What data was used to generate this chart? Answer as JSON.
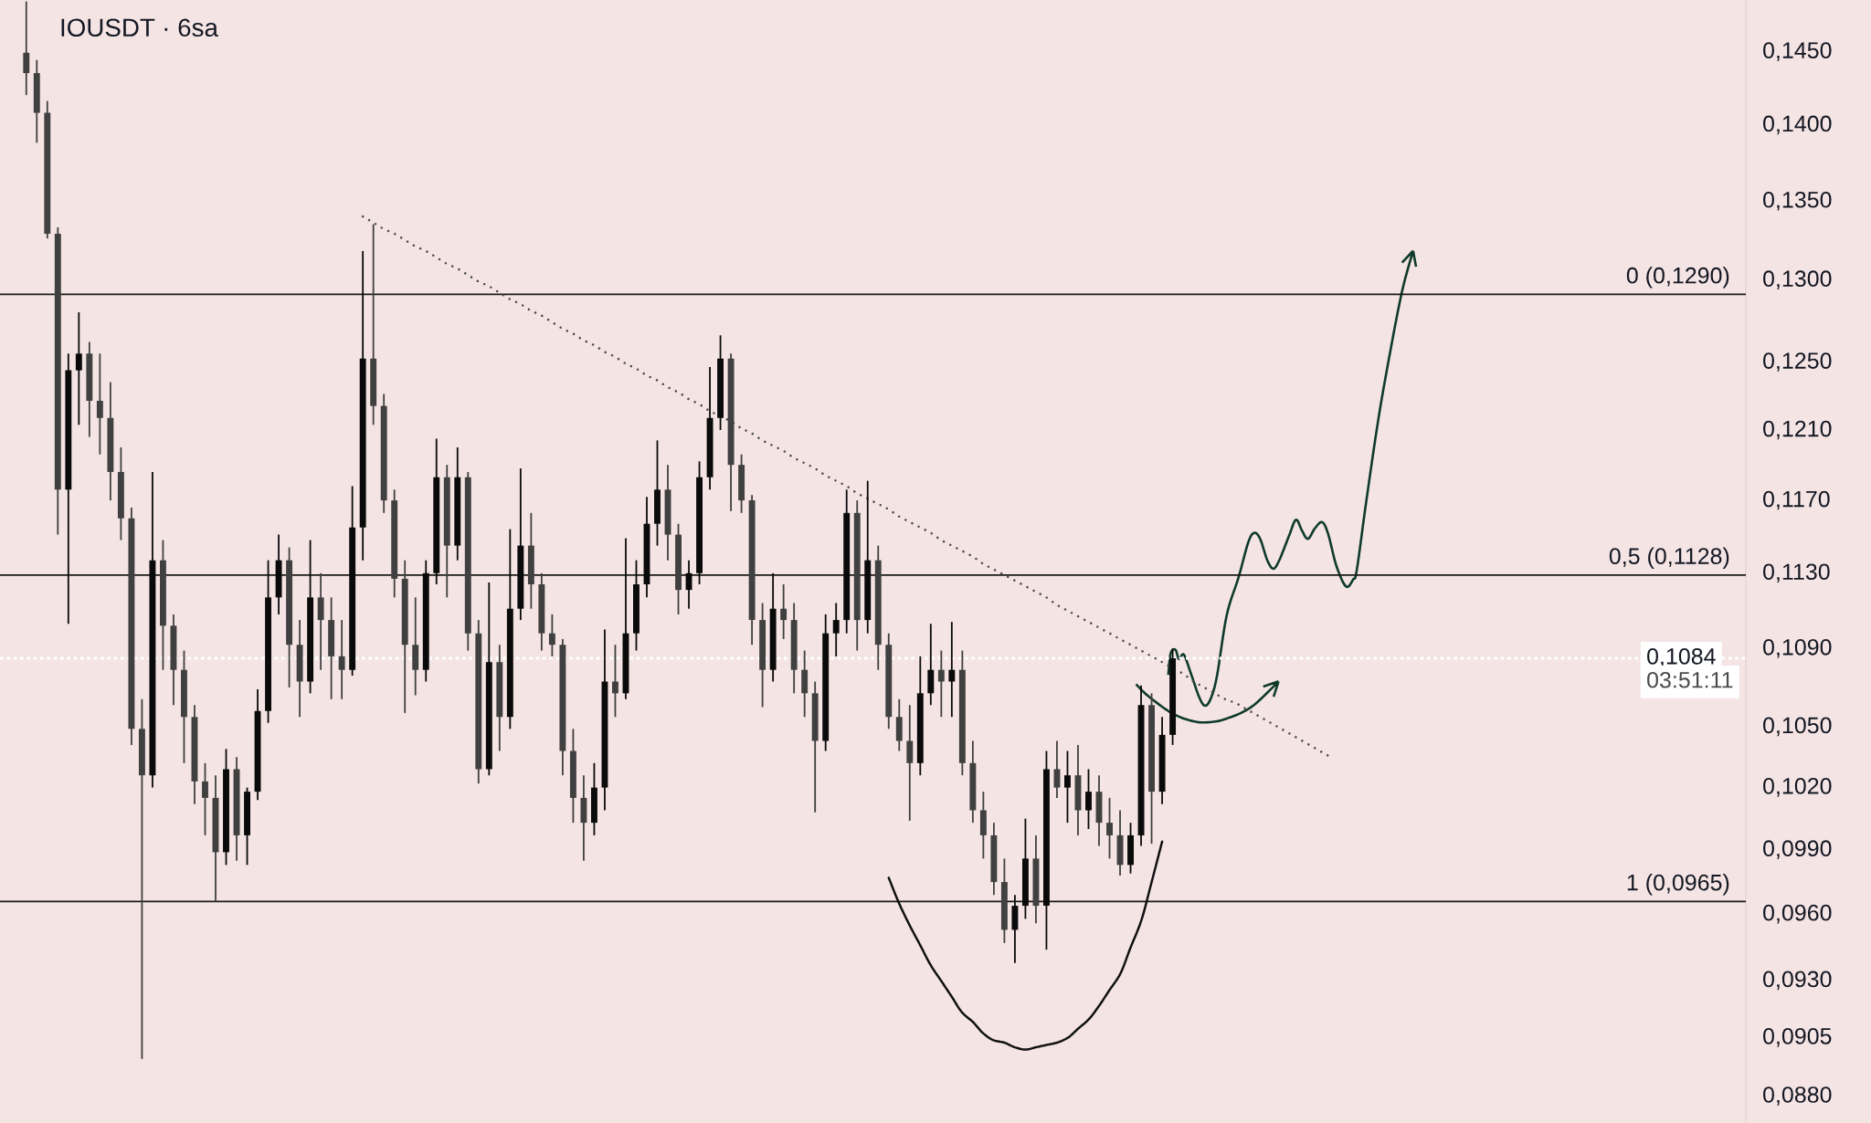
{
  "chart_data": {
    "type": "candlestick",
    "title": "IOUSDT · 6sa",
    "categories": [
      null,
      null,
      null,
      null,
      null,
      null,
      null,
      null,
      null,
      null,
      null,
      null,
      null,
      null,
      null,
      null,
      null,
      null,
      null,
      null,
      null,
      null,
      null,
      null,
      null,
      null,
      null,
      null,
      null,
      null,
      null,
      null,
      null,
      null,
      null,
      null,
      null,
      null,
      null,
      null,
      null,
      null,
      null,
      null,
      null,
      null,
      null,
      null,
      null,
      null,
      null,
      null,
      null,
      null,
      null,
      null,
      null,
      null,
      null,
      null,
      null,
      null,
      null,
      null,
      null,
      null,
      null,
      null,
      null,
      null,
      null,
      null,
      null,
      null,
      null,
      null,
      null,
      null,
      null,
      null,
      null,
      null,
      null,
      null,
      null,
      null,
      null,
      null,
      null,
      null,
      null,
      null,
      null,
      null,
      null,
      null,
      null,
      null,
      null,
      null,
      null,
      null,
      null,
      null,
      null,
      null,
      null,
      null,
      null,
      null,
      null,
      null,
      null,
      null,
      null,
      null,
      null,
      null,
      null,
      null,
      null,
      null,
      null,
      null,
      null,
      null,
      null,
      null,
      null,
      null,
      null,
      null,
      null,
      null,
      null,
      null,
      null,
      null,
      null,
      null,
      null,
      null,
      null,
      null,
      null,
      null,
      null,
      null,
      null,
      null,
      null,
      null,
      null,
      null,
      null,
      null,
      null,
      null,
      null,
      null,
      null,
      null,
      null,
      null,
      null,
      null
    ],
    "series": [
      {
        "colors": [
          null,
          null,
          "#404040",
          "#404040",
          "#404040",
          "#404040",
          "#0a0a0a",
          "#0a0a0a",
          "#404040",
          "#404040",
          "#404040",
          "#404040",
          "#404040",
          "#404040",
          "#0a0a0a",
          "#404040",
          "#404040",
          "#404040",
          "#404040",
          "#404040",
          "#404040",
          "#0a0a0a",
          "#404040",
          "#0a0a0a",
          "#0a0a0a",
          "#0a0a0a",
          "#0a0a0a",
          "#404040",
          "#404040",
          "#0a0a0a",
          "#404040",
          "#404040",
          "#404040",
          "#0a0a0a",
          "#0a0a0a",
          "#404040",
          "#404040",
          "#404040",
          "#404040",
          "#404040",
          "#0a0a0a",
          "#0a0a0a",
          "#404040",
          "#0a0a0a",
          "#404040",
          "#404040",
          "#0a0a0a",
          "#404040",
          "#0a0a0a",
          "#0a0a0a",
          "#404040",
          "#404040",
          "#404040",
          "#404040",
          "#404040",
          "#404040",
          "#0a0a0a",
          "#0a0a0a",
          "#404040",
          "#0a0a0a",
          "#0a0a0a",
          "#0a0a0a",
          "#0a0a0a",
          "#404040",
          "#404040",
          "#0a0a0a",
          "#0a0a0a",
          "#0a0a0a",
          "#0a0a0a",
          "#404040",
          "#404040",
          "#404040",
          "#404040",
          "#0a0a0a",
          "#404040",
          "#404040",
          "#404040",
          "#404040",
          "#0a0a0a",
          "#0a0a0a",
          "#0a0a0a",
          "#404040",
          "#0a0a0a",
          "#404040",
          "#404040",
          "#404040",
          "#404040",
          "#0a0a0a",
          "#0a0a0a",
          "#404040",
          "#0a0a0a",
          "#404040",
          "#404040",
          "#404040",
          "#404040",
          "#404040",
          "#0a0a0a",
          "#0a0a0a",
          "#404040",
          "#0a0a0a",
          "#404040",
          "#0a0a0a",
          "#404040",
          "#0a0a0a",
          "#404040",
          "#404040",
          "#404040",
          "#0a0a0a",
          "#0a0a0a",
          "#404040",
          "#0a0a0a",
          "#0a0a0a",
          null,
          null,
          null,
          null,
          null,
          null,
          null,
          null,
          null,
          null,
          null,
          null,
          null,
          null,
          null,
          null,
          null,
          null,
          null,
          null,
          null,
          null,
          null,
          null,
          null,
          null,
          null,
          null,
          null,
          null,
          null,
          null,
          null,
          null,
          null,
          null,
          null,
          null,
          null,
          null,
          null,
          null,
          null,
          null,
          null,
          null,
          null,
          null,
          null,
          null,
          null,
          null,
          null,
          null
        ],
        "ohlc": [
          null,
          null,
          [
            0.1448,
            0.1484,
            0.1419,
            0.1434
          ],
          [
            0.1434,
            0.1443,
            0.1387,
            0.1407
          ],
          [
            0.1407,
            0.1415,
            0.1325,
            0.1328
          ],
          [
            0.1328,
            0.1332,
            0.115,
            0.1175
          ],
          [
            0.1175,
            0.1254,
            0.1102,
            0.1244
          ],
          [
            0.1244,
            0.1279,
            0.1212,
            0.1254
          ],
          [
            0.1254,
            0.1261,
            0.1205,
            0.1226
          ],
          [
            0.1226,
            0.1254,
            0.1195,
            0.1216
          ],
          [
            0.1216,
            0.1237,
            0.1169,
            0.1185
          ],
          [
            0.1185,
            0.1199,
            0.1147,
            0.1159
          ],
          [
            0.1159,
            0.1165,
            0.104,
            0.1048
          ],
          [
            0.1048,
            0.1063,
            0.0895,
            0.1025
          ],
          [
            0.1025,
            0.1185,
            0.1019,
            0.1136
          ],
          [
            0.1136,
            0.1147,
            0.1078,
            0.1101
          ],
          [
            0.1101,
            0.1107,
            0.106,
            0.1078
          ],
          [
            0.1078,
            0.1088,
            0.1031,
            0.1054
          ],
          [
            0.1054,
            0.106,
            0.1011,
            0.1022
          ],
          [
            0.1022,
            0.1031,
            0.0996,
            0.1014
          ],
          [
            0.1014,
            0.1025,
            0.0965,
            0.0988
          ],
          [
            0.0988,
            0.1038,
            0.0982,
            0.1028
          ],
          [
            0.1028,
            0.1034,
            0.0984,
            0.0996
          ],
          [
            0.0996,
            0.1019,
            0.0982,
            0.1017
          ],
          [
            0.1017,
            0.1068,
            0.1013,
            0.1057
          ],
          [
            0.1057,
            0.1136,
            0.1051,
            0.1116
          ],
          [
            0.1116,
            0.115,
            0.1107,
            0.1136
          ],
          [
            0.1136,
            0.1143,
            0.1069,
            0.1091
          ],
          [
            0.1091,
            0.1104,
            0.1054,
            0.1072
          ],
          [
            0.1072,
            0.1147,
            0.1066,
            0.1116
          ],
          [
            0.1116,
            0.1129,
            0.1078,
            0.1104
          ],
          [
            0.1104,
            0.1116,
            0.1063,
            0.1085
          ],
          [
            0.1085,
            0.1104,
            0.1063,
            0.1078
          ],
          [
            0.1078,
            0.1177,
            0.1075,
            0.1154
          ],
          [
            0.1154,
            0.1317,
            0.1136,
            0.1251
          ],
          [
            0.1251,
            0.1334,
            0.1212,
            0.1223
          ],
          [
            0.1223,
            0.123,
            0.1162,
            0.1169
          ],
          [
            0.1169,
            0.1175,
            0.1116,
            0.1126
          ],
          [
            0.1126,
            0.1136,
            0.1056,
            0.1091
          ],
          [
            0.1091,
            0.1116,
            0.1065,
            0.1078
          ],
          [
            0.1078,
            0.1136,
            0.1072,
            0.1129
          ],
          [
            0.1129,
            0.1204,
            0.1123,
            0.1182
          ],
          [
            0.1182,
            0.1189,
            0.1116,
            0.1144
          ],
          [
            0.1144,
            0.1199,
            0.1136,
            0.1182
          ],
          [
            0.1182,
            0.1185,
            0.1088,
            0.1097
          ],
          [
            0.1097,
            0.1104,
            0.1021,
            0.1028
          ],
          [
            0.1028,
            0.1124,
            0.1025,
            0.1082
          ],
          [
            0.1082,
            0.1091,
            0.1037,
            0.1054
          ],
          [
            0.1054,
            0.1153,
            0.1048,
            0.111
          ],
          [
            0.111,
            0.1187,
            0.1104,
            0.1144
          ],
          [
            0.1144,
            0.1162,
            0.111,
            0.1123
          ],
          [
            0.1123,
            0.1129,
            0.1088,
            0.1097
          ],
          [
            0.1097,
            0.1107,
            0.1085,
            0.1091
          ],
          [
            0.1091,
            0.1094,
            0.1025,
            0.1037
          ],
          [
            0.1037,
            0.1048,
            0.1002,
            0.1014
          ],
          [
            0.1014,
            0.1025,
            0.0984,
            0.1002
          ],
          [
            0.1002,
            0.1031,
            0.0996,
            0.1019
          ],
          [
            0.1019,
            0.1099,
            0.1008,
            0.1072
          ],
          [
            0.1072,
            0.1091,
            0.1054,
            0.1066
          ],
          [
            0.1066,
            0.1148,
            0.1063,
            0.1097
          ],
          [
            0.1097,
            0.1136,
            0.1088,
            0.1123
          ],
          [
            0.1123,
            0.1171,
            0.1116,
            0.1156
          ],
          [
            0.1156,
            0.1203,
            0.1144,
            0.1175
          ],
          [
            0.1175,
            0.1189,
            0.1136,
            0.115
          ],
          [
            0.115,
            0.1156,
            0.1107,
            0.112
          ],
          [
            0.112,
            0.1136,
            0.111,
            0.1129
          ],
          [
            0.1129,
            0.1191,
            0.1123,
            0.1182
          ],
          [
            0.1182,
            0.1246,
            0.1175,
            0.1216
          ],
          [
            0.1216,
            0.1265,
            0.1209,
            0.1251
          ],
          [
            0.1251,
            0.1254,
            0.1163,
            0.1189
          ],
          [
            0.1189,
            0.1195,
            0.1162,
            0.1169
          ],
          [
            0.1169,
            0.1172,
            0.1091,
            0.1104
          ],
          [
            0.1104,
            0.1113,
            0.1059,
            0.1078
          ],
          [
            0.1078,
            0.1129,
            0.1072,
            0.111
          ],
          [
            0.111,
            0.1123,
            0.1094,
            0.1104
          ],
          [
            0.1104,
            0.1113,
            0.1066,
            0.1078
          ],
          [
            0.1078,
            0.1088,
            0.1054,
            0.1066
          ],
          [
            0.1066,
            0.1072,
            0.1007,
            0.1042
          ],
          [
            0.1042,
            0.1107,
            0.1037,
            0.1097
          ],
          [
            0.1097,
            0.1113,
            0.1085,
            0.1104
          ],
          [
            0.1104,
            0.1175,
            0.1097,
            0.1162
          ],
          [
            0.1162,
            0.1169,
            0.1088,
            0.1104
          ],
          [
            0.1104,
            0.118,
            0.1097,
            0.1136
          ],
          [
            0.1136,
            0.1144,
            0.1078,
            0.1091
          ],
          [
            0.1091,
            0.1097,
            0.1048,
            0.1054
          ],
          [
            0.1054,
            0.1063,
            0.1037,
            0.1042
          ],
          [
            0.1042,
            0.106,
            0.1003,
            0.1031
          ],
          [
            0.1031,
            0.1085,
            0.1025,
            0.1066
          ],
          [
            0.1066,
            0.1102,
            0.106,
            0.1078
          ],
          [
            0.1078,
            0.1088,
            0.1054,
            0.1072
          ],
          [
            0.1072,
            0.1103,
            0.1054,
            0.1078
          ],
          [
            0.1078,
            0.1088,
            0.1025,
            0.1031
          ],
          [
            0.1031,
            0.1042,
            0.1002,
            0.1008
          ],
          [
            0.1008,
            0.1017,
            0.0985,
            0.0996
          ],
          [
            0.0996,
            0.1002,
            0.0968,
            0.0974
          ],
          [
            0.0974,
            0.0985,
            0.0946,
            0.0952
          ],
          [
            0.0952,
            0.0968,
            0.0937,
            0.0963
          ],
          [
            0.0963,
            0.1004,
            0.0957,
            0.0985
          ],
          [
            0.0985,
            0.0996,
            0.0955,
            0.0963
          ],
          [
            0.0963,
            0.1037,
            0.0943,
            0.1028
          ],
          [
            0.1028,
            0.1042,
            0.1014,
            0.1019
          ],
          [
            0.1019,
            0.1037,
            0.1002,
            0.1025
          ],
          [
            0.1025,
            0.104,
            0.0996,
            0.1008
          ],
          [
            0.1008,
            0.1028,
            0.0999,
            0.1017
          ],
          [
            0.1017,
            0.1025,
            0.0991,
            0.1002
          ],
          [
            0.1002,
            0.1014,
            0.0985,
            0.0996
          ],
          [
            0.0996,
            0.1008,
            0.0977,
            0.0982
          ],
          [
            0.0982,
            0.1002,
            0.0978,
            0.0996
          ],
          [
            0.0996,
            0.107,
            0.0991,
            0.106
          ],
          [
            0.106,
            0.1066,
            0.0992,
            0.1017
          ],
          [
            0.1017,
            0.1054,
            0.1011,
            0.1045
          ],
          [
            0.1045,
            0.1089,
            0.104,
            0.1084
          ],
          null,
          null,
          null,
          null,
          null,
          null,
          null,
          null,
          null,
          null,
          null,
          null,
          null,
          null,
          null,
          null,
          null,
          null,
          null,
          null,
          null,
          null,
          null,
          null,
          null,
          null,
          null,
          null,
          null,
          null,
          null,
          null,
          null,
          null,
          null,
          null,
          null,
          null,
          null,
          null,
          null,
          null,
          null,
          null,
          null,
          null,
          null,
          null,
          null,
          null,
          null,
          null,
          null,
          null
        ]
      },
      {
        "type": "line",
        "color": "#4a4a4a",
        "line_style": "dotted",
        "values": [
          null,
          null,
          null,
          null,
          null,
          null,
          null,
          null,
          null,
          null,
          null,
          null,
          null,
          null,
          null,
          null,
          null,
          null,
          null,
          null,
          null,
          null,
          null,
          null,
          null,
          null,
          null,
          null,
          null,
          null,
          null,
          null,
          null,
          null,
          0.1339,
          0.1335,
          0.1331,
          0.1328,
          0.1324,
          0.132,
          0.1317,
          0.1313,
          0.1309,
          0.1306,
          0.1302,
          0.1298,
          0.1295,
          0.1291,
          0.1287,
          0.1284,
          0.128,
          0.1277,
          0.1273,
          0.1269,
          0.1266,
          0.1262,
          0.1259,
          0.1255,
          0.1252,
          0.1248,
          0.1245,
          0.1241,
          0.1238,
          0.1234,
          0.1231,
          0.1227,
          0.1224,
          0.122,
          0.1217,
          0.1214,
          0.121,
          0.1207,
          0.1203,
          0.12,
          0.1197,
          0.1193,
          0.119,
          0.1187,
          0.1183,
          0.118,
          0.1177,
          0.1173,
          0.117,
          0.1167,
          0.1164,
          0.116,
          0.1157,
          0.1154,
          0.1151,
          0.1147,
          0.1144,
          0.1141,
          0.1138,
          0.1134,
          0.1131,
          0.1128,
          0.1125,
          0.1122,
          0.1119,
          0.1116,
          0.1112,
          0.1109,
          0.1106,
          0.1103,
          0.11,
          0.1097,
          0.1094,
          0.1091,
          0.1088,
          0.1085,
          0.1082,
          0.1079,
          0.1076,
          0.1072,
          0.1069,
          0.1066,
          0.1063,
          0.1061,
          0.1058,
          0.1055,
          0.1052,
          0.1049,
          0.1046,
          0.1043,
          0.104,
          0.1037,
          0.1034,
          null,
          null,
          null,
          null,
          null,
          null,
          null,
          null,
          null,
          null,
          null,
          null,
          null,
          null,
          null,
          null,
          null,
          null,
          null,
          null,
          null,
          null,
          null,
          null,
          null,
          null,
          null,
          null,
          null,
          null,
          null,
          null,
          null,
          null,
          null,
          null,
          null,
          null,
          null
        ]
      },
      {
        "type": "line",
        "color": "#111111",
        "values": [
          null,
          null,
          null,
          null,
          null,
          null,
          null,
          null,
          null,
          null,
          null,
          null,
          null,
          null,
          null,
          null,
          null,
          null,
          null,
          null,
          null,
          null,
          null,
          null,
          null,
          null,
          null,
          null,
          null,
          null,
          null,
          null,
          null,
          null,
          null,
          null,
          null,
          null,
          null,
          null,
          null,
          null,
          null,
          null,
          null,
          null,
          null,
          null,
          null,
          null,
          null,
          null,
          null,
          null,
          null,
          null,
          null,
          null,
          null,
          null,
          null,
          null,
          null,
          null,
          null,
          null,
          null,
          null,
          null,
          null,
          null,
          null,
          null,
          null,
          null,
          null,
          null,
          null,
          null,
          null,
          null,
          null,
          null,
          null,
          0.0976,
          0.0964,
          0.0954,
          0.0945,
          0.0936,
          0.0929,
          0.0922,
          0.0915,
          0.0911,
          0.0906,
          0.0903,
          0.0902,
          0.09,
          0.0899,
          0.09,
          0.0901,
          0.0902,
          0.0904,
          0.0908,
          0.0912,
          0.0918,
          0.0925,
          0.0932,
          0.0944,
          0.0956,
          0.0974,
          0.0993,
          null,
          null,
          null,
          null,
          null,
          null,
          null,
          null,
          null,
          null,
          null,
          null,
          null,
          null,
          null,
          null,
          null,
          null,
          null,
          null,
          null,
          null,
          null,
          null,
          null,
          null,
          null,
          null,
          null,
          null,
          null,
          null,
          null,
          null,
          null,
          null,
          null,
          null,
          null,
          null,
          null,
          null,
          null,
          null,
          null,
          null,
          null,
          null,
          null,
          null,
          null,
          null,
          null,
          null,
          null
        ]
      }
    ],
    "log": true,
    "ylim": [
      0.0868,
      0.1485
    ],
    "yticks": [
      {
        "value": 0.145,
        "label": "0,1450"
      },
      {
        "value": 0.14,
        "label": "0,1400"
      },
      {
        "value": 0.135,
        "label": "0,1350"
      },
      {
        "value": 0.13,
        "label": "0,1300"
      },
      {
        "value": 0.125,
        "label": "0,1250"
      },
      {
        "value": 0.121,
        "label": "0,1210"
      },
      {
        "value": 0.117,
        "label": "0,1170"
      },
      {
        "value": 0.113,
        "label": "0,1130"
      },
      {
        "value": 0.109,
        "label": "0,1090"
      },
      {
        "value": 0.105,
        "label": "0,1050"
      },
      {
        "value": 0.102,
        "label": "0,1020"
      },
      {
        "value": 0.099,
        "label": "0,0990"
      },
      {
        "value": 0.096,
        "label": "0,0960"
      },
      {
        "value": 0.093,
        "label": "0,0930"
      },
      {
        "value": 0.0905,
        "label": "0,0905"
      },
      {
        "value": 0.088,
        "label": "0,0880"
      }
    ],
    "tick_labels": "y",
    "ref_lines": [
      {
        "axis": "y",
        "value": 0.129,
        "label": "0 (0,1290)",
        "color": "#1a1a1a"
      },
      {
        "axis": "y",
        "value": 0.1128,
        "label": "0,5 (0,1128)",
        "color": "#1a1a1a"
      },
      {
        "axis": "y",
        "value": 0.0965,
        "label": "1 (0,0965)",
        "color": "#1a1a1a"
      },
      {
        "axis": "y",
        "value": 0.1084,
        "label": "0,1084",
        "color": "#ffffff",
        "line_style": "dotted"
      }
    ],
    "annotations": [
      "03:51:11"
    ]
  }
}
